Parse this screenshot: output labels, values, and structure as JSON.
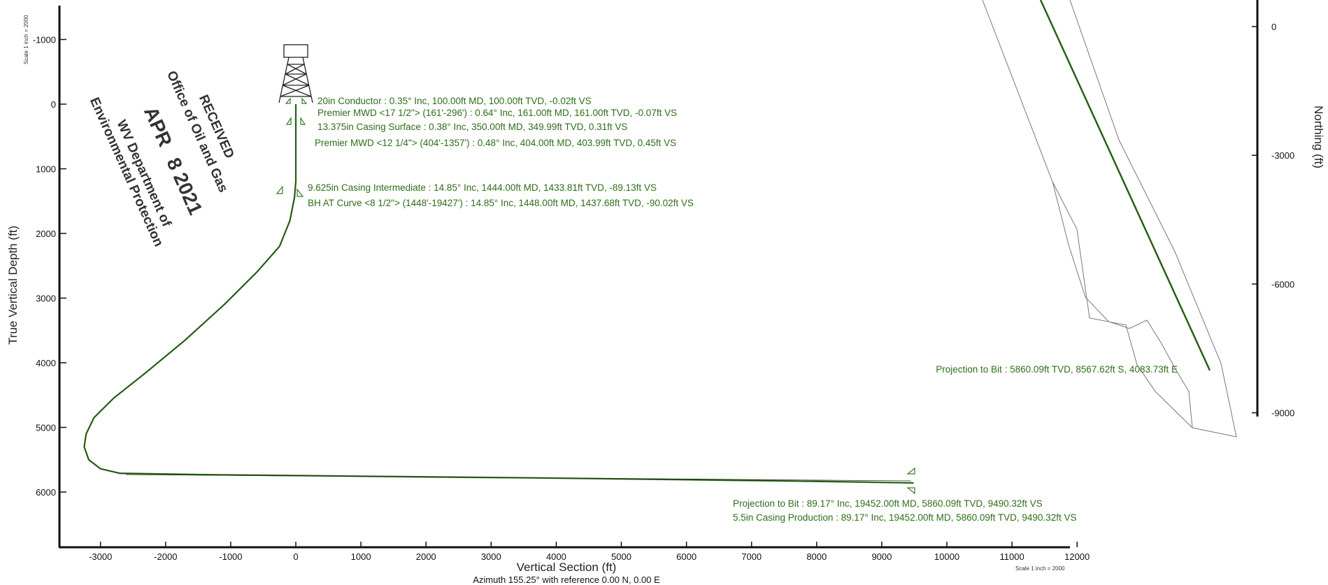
{
  "colors": {
    "annotation": "#2d6e1a",
    "wellbore": "#3a7a28",
    "axis": "#111111",
    "lease_outline": "#777777"
  },
  "section_view": {
    "xlabel": "Vertical Section (ft)",
    "ylabel": "True Vertical Depth (ft)",
    "subtitle": "Azimuth 155.25° with reference 0.00 N, 0.00 E",
    "scale_x": "Scale 1 inch = 2000",
    "scale_y": "Scale 1 inch = 2000"
  },
  "plan_view": {
    "ylabel": "Northing (ft)"
  },
  "annotations": {
    "conductor": "20in Conductor : 0.35° Inc, 100.00ft MD, 100.00ft TVD, -0.02ft VS",
    "mwd1": "Premier MWD <17 1/2\"> (161'-296') : 0.64° Inc, 161.00ft MD, 161.00ft TVD, -0.07ft VS",
    "surface": "13.375in Casing Surface : 0.38° Inc, 350.00ft MD, 349.99ft TVD, 0.31ft VS",
    "mwd2": "Premier MWD <12 1/4\"> (404'-1357') : 0.48° Inc, 404.00ft MD, 403.99ft TVD, 0.45ft VS",
    "intermediate": "9.625in Casing Intermediate : 14.85° Inc, 1444.00ft MD, 1433.81ft TVD, -89.13ft VS",
    "bh_curve": "BH AT Curve <8 1/2\"> (1448'-19427') : 14.85° Inc, 1448.00ft MD, 1437.68ft TVD, -90.02ft VS",
    "proj_bit": "Projection to Bit : 89.17° Inc, 19452.00ft MD, 5860.09ft TVD, 9490.32ft VS",
    "production": "5.5in Casing Production : 89.17° Inc, 19452.00ft MD, 5860.09ft TVD, 9490.32ft VS",
    "plan_proj_bit": "Projection to Bit : 5860.09ft TVD, 8567.62ft S, 4083.73ft E"
  },
  "stamp": {
    "line1": "RECEIVED",
    "line2": "Office of Oil and Gas",
    "line3": "APR",
    "line4": "8 2021",
    "line5": "WV Department of",
    "line6": "Environmental Protection"
  },
  "chart_data": [
    {
      "type": "line",
      "xlabel": "Vertical Section (ft)",
      "ylabel": "True Vertical Depth (ft)",
      "xlim": [
        -3600,
        12000
      ],
      "ylim": [
        6900,
        -1300
      ],
      "x_ticks": [
        -3000,
        -2000,
        -1000,
        0,
        1000,
        2000,
        3000,
        4000,
        5000,
        6000,
        7000,
        8000,
        9000,
        10000,
        11000,
        12000
      ],
      "y_ticks": [
        -1000,
        0,
        1000,
        2000,
        3000,
        4000,
        5000,
        6000
      ],
      "series": [
        {
          "x": [
            0,
            0,
            0,
            0,
            0,
            -20,
            -90,
            -250,
            -600,
            -1100,
            -1700,
            -2300,
            -2800,
            -3100,
            -3220,
            -3250,
            -3180,
            -3000,
            -2700,
            -1500,
            0,
            2000,
            4000,
            6000,
            8000,
            9490
          ],
          "y": [
            0,
            100,
            400,
            800,
            1200,
            1444,
            1800,
            2200,
            2600,
            3100,
            3650,
            4150,
            4550,
            4850,
            5100,
            5300,
            5500,
            5640,
            5710,
            5730,
            5745,
            5765,
            5785,
            5810,
            5835,
            5860
          ]
        }
      ]
    },
    {
      "type": "line",
      "ylabel": "Northing (ft)",
      "y_ticks": [
        0,
        -3000,
        -6000,
        -9000
      ],
      "series": [
        {
          "x": [
            0,
            4083.73
          ],
          "y": [
            0,
            -8567.62
          ]
        }
      ]
    }
  ]
}
